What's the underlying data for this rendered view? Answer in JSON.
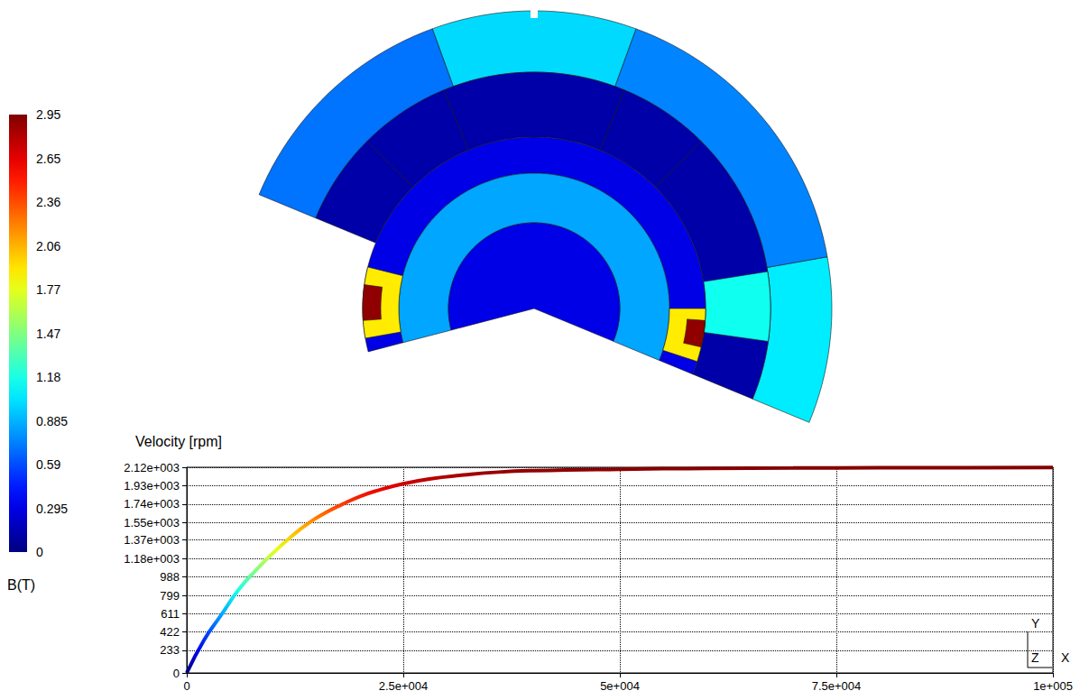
{
  "chart_data": [
    {
      "type": "field",
      "field_b": [
        1.05,
        0.75,
        1.0,
        0.7,
        0.12,
        1.15,
        0.3,
        0.85,
        0.3,
        1.9,
        2.9,
        1.9,
        2.9
      ],
      "colorbar_range": [
        0,
        2.95
      ],
      "colorbar_ticks": [
        0,
        0.295,
        0.59,
        0.885,
        1.18,
        1.47,
        1.77,
        2.06,
        2.36,
        2.65,
        2.95
      ],
      "colorbar_label": "B(T)"
    },
    {
      "type": "line",
      "title": "Velocity [rpm]",
      "x": [
        0,
        2000,
        4000,
        6000,
        8000,
        10000,
        12000,
        14000,
        16000,
        18000,
        20000,
        22000,
        25000,
        28000,
        32000,
        36000,
        40000,
        50000,
        60000,
        70000,
        80000,
        90000,
        100000
      ],
      "values": [
        0,
        340,
        600,
        860,
        1060,
        1240,
        1400,
        1540,
        1650,
        1740,
        1820,
        1880,
        1950,
        2000,
        2040,
        2070,
        2085,
        2100,
        2108,
        2112,
        2115,
        2116,
        2117
      ],
      "xlim": [
        0,
        100000
      ],
      "xticks": [
        0,
        {
          "value": 25000,
          "label": "2.5e+004"
        },
        {
          "value": 50000,
          "label": "5e+004"
        },
        {
          "value": 75000,
          "label": "7.5e+004"
        },
        {
          "value": 100000,
          "label": "1e+005"
        }
      ],
      "ylim": [
        0,
        2120
      ],
      "yticks": [
        0,
        233,
        422,
        611,
        799,
        988,
        {
          "value": 1180,
          "label": "1.18e+003"
        },
        {
          "value": 1370,
          "label": "1.37e+003"
        },
        {
          "value": 1550,
          "label": "1.55e+003"
        },
        {
          "value": 1740,
          "label": "1.74e+003"
        },
        {
          "value": 1930,
          "label": "1.93e+003"
        },
        {
          "value": 2120,
          "label": "2.12e+003"
        }
      ],
      "grid": true,
      "annotations": [
        "Y",
        "Z",
        "X"
      ]
    }
  ]
}
